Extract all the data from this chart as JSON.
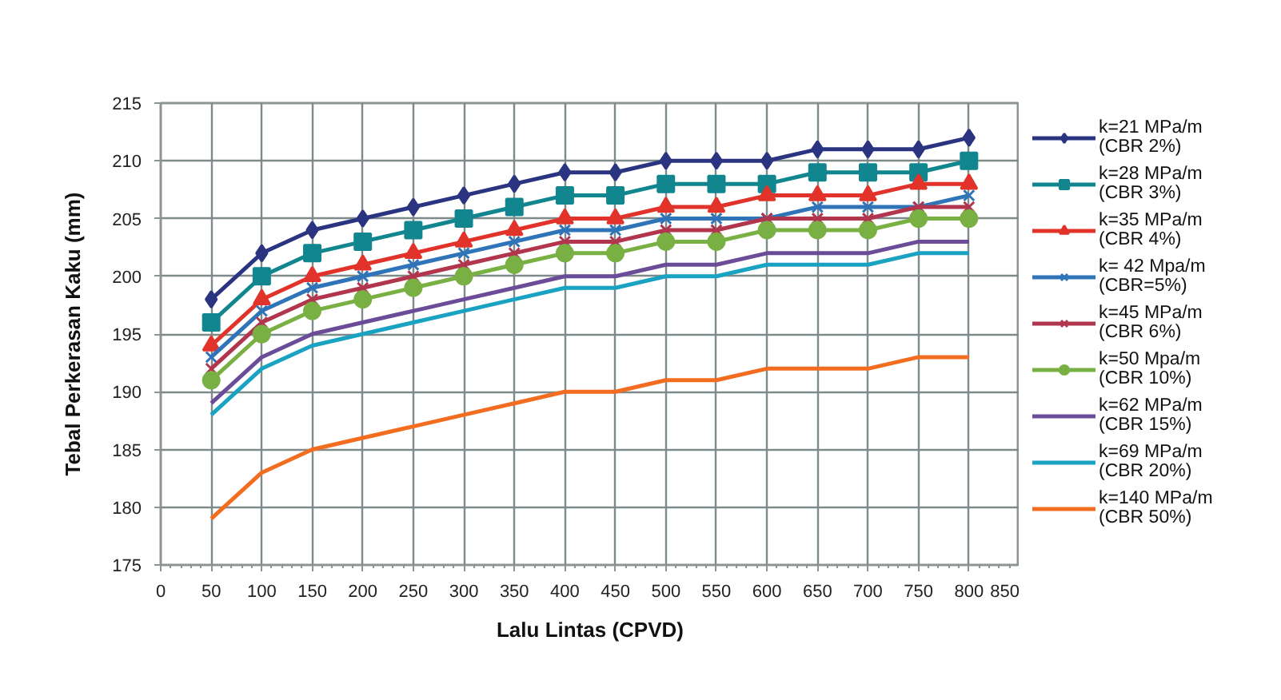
{
  "chart_data": {
    "type": "line",
    "xlabel": "Lalu Lintas (CPVD)",
    "ylabel": "Tebal Perkerasan Kaku (mm)",
    "x": [
      50,
      100,
      150,
      200,
      250,
      300,
      350,
      400,
      450,
      500,
      550,
      600,
      650,
      700,
      750,
      800
    ],
    "xlim": [
      0,
      850
    ],
    "xticks": [
      0,
      50,
      100,
      150,
      200,
      250,
      300,
      350,
      400,
      450,
      500,
      550,
      600,
      650,
      700,
      750,
      800,
      850
    ],
    "ylim": [
      175,
      215
    ],
    "yticks": [
      175,
      180,
      185,
      190,
      195,
      200,
      205,
      210,
      215
    ],
    "grid": true,
    "legend": "right",
    "series": [
      {
        "name": "k=21 MPa/m (CBR 2%)",
        "color": "#2b3480",
        "marker": "diamond",
        "values": [
          198,
          202,
          204,
          205,
          206,
          207,
          208,
          209,
          209,
          210,
          210,
          210,
          211,
          211,
          211,
          212
        ]
      },
      {
        "name": "k=28 MPa/m (CBR 3%)",
        "color": "#12868f",
        "marker": "square",
        "values": [
          196,
          200,
          202,
          203,
          204,
          205,
          206,
          207,
          207,
          208,
          208,
          208,
          209,
          209,
          209,
          210
        ]
      },
      {
        "name": "k=35 MPa/m (CBR 4%)",
        "color": "#e2332a",
        "marker": "triangle",
        "values": [
          194,
          198,
          200,
          201,
          202,
          203,
          204,
          205,
          205,
          206,
          206,
          207,
          207,
          207,
          208,
          208
        ]
      },
      {
        "name": "k= 42 Mpa/m (CBR=5%)",
        "color": "#2f73b8",
        "marker": "cross",
        "values": [
          193,
          197,
          199,
          200,
          201,
          202,
          203,
          204,
          204,
          205,
          205,
          205,
          206,
          206,
          206,
          207
        ]
      },
      {
        "name": "k=45 MPa/m (CBR 6%)",
        "color": "#b2354e",
        "marker": "cross",
        "values": [
          192,
          196,
          198,
          199,
          200,
          201,
          202,
          203,
          203,
          204,
          204,
          205,
          205,
          205,
          206,
          206
        ]
      },
      {
        "name": "k=50 Mpa/m (CBR 10%)",
        "color": "#79b043",
        "marker": "circle",
        "values": [
          191,
          195,
          197,
          198,
          199,
          200,
          201,
          202,
          202,
          203,
          203,
          204,
          204,
          204,
          205,
          205
        ]
      },
      {
        "name": "k=62 MPa/m (CBR 15%)",
        "color": "#6a4c98",
        "marker": "none",
        "values": [
          189,
          193,
          195,
          196,
          197,
          198,
          199,
          200,
          200,
          201,
          201,
          202,
          202,
          202,
          203,
          203
        ]
      },
      {
        "name": "k=69 MPa/m (CBR 20%)",
        "color": "#1aa2c2",
        "marker": "none",
        "values": [
          188,
          192,
          194,
          195,
          196,
          197,
          198,
          199,
          199,
          200,
          200,
          201,
          201,
          201,
          202,
          202
        ]
      },
      {
        "name": "k=140 MPa/m (CBR 50%)",
        "color": "#f36d21",
        "marker": "none",
        "values": [
          179,
          183,
          185,
          186,
          187,
          188,
          189,
          190,
          190,
          191,
          191,
          192,
          192,
          192,
          193,
          193
        ]
      }
    ]
  }
}
